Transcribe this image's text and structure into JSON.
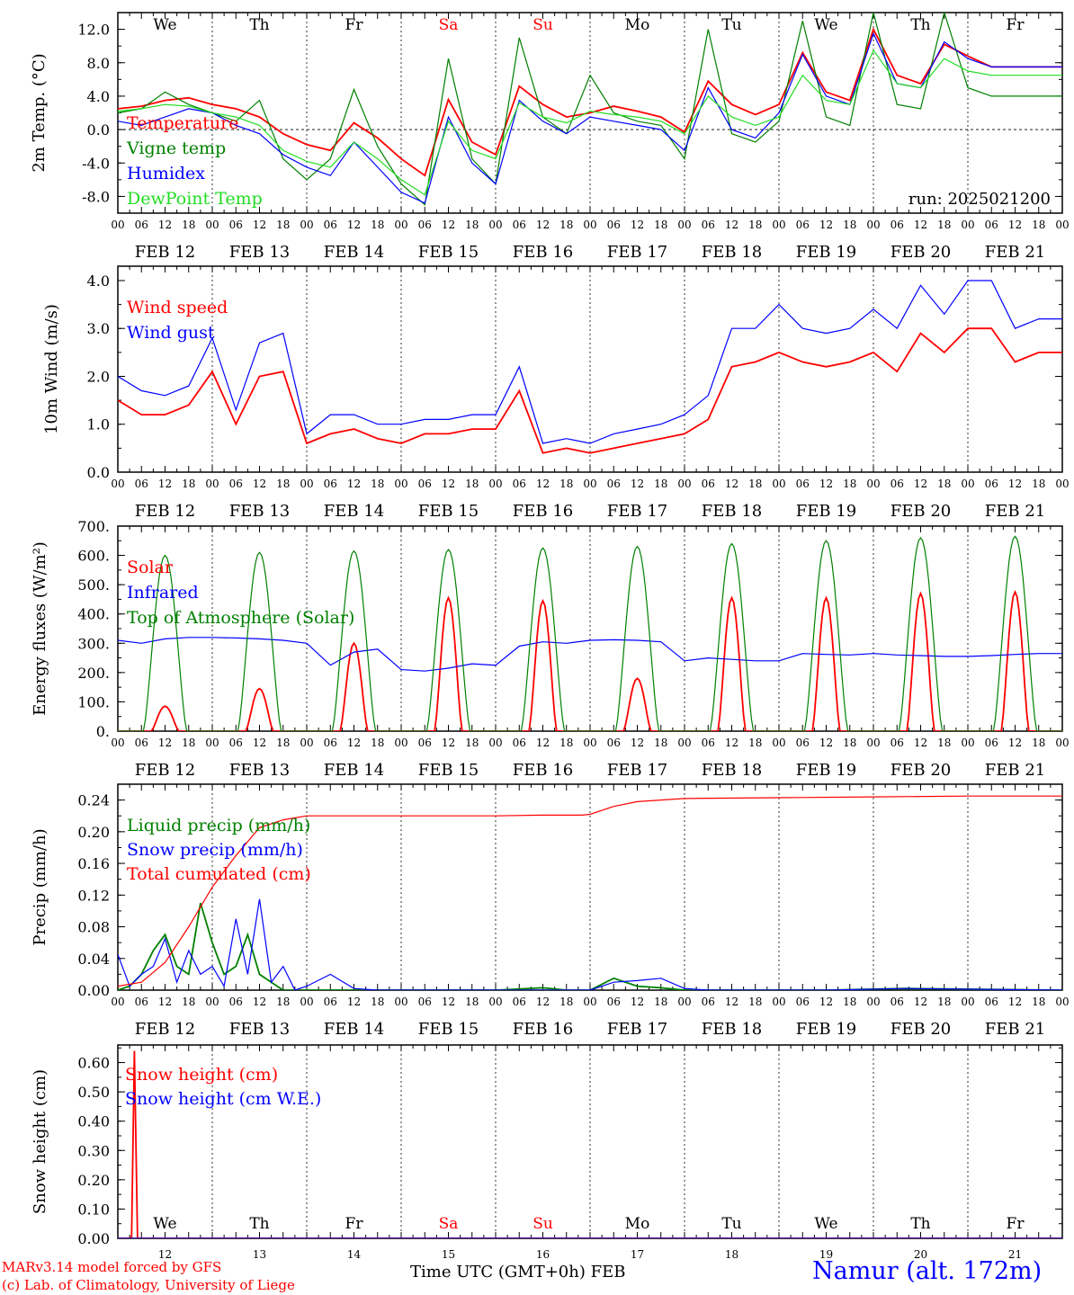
{
  "colors": {
    "red": "#ff0000",
    "green": "#008000",
    "blue": "#0000ff",
    "lightgreen": "#22dd22",
    "axis": "#000000",
    "weekend": "#ff0000",
    "credit": "#ff0000",
    "station": "#0000ff"
  },
  "days": {
    "weekday_names": [
      "We",
      "Th",
      "Fr",
      "Sa",
      "Su",
      "Mo",
      "Tu",
      "We",
      "Th",
      "Fr"
    ],
    "weekend_flags": [
      false,
      false,
      false,
      true,
      true,
      false,
      false,
      false,
      false,
      false
    ],
    "date_labels": [
      "FEB 12",
      "FEB 13",
      "FEB 14",
      "FEB 15",
      "FEB 16",
      "FEB 17",
      "FEB 18",
      "FEB 19",
      "FEB 20",
      "FEB 21"
    ],
    "day_numbers": [
      "12",
      "13",
      "14",
      "15",
      "16",
      "17",
      "18",
      "19",
      "20",
      "21"
    ],
    "hour_ticks": [
      "00",
      "06",
      "12",
      "18"
    ],
    "final_tick": "00"
  },
  "run_label": "run: 2025021200",
  "footer": {
    "credit1": "MARv3.14 model forced by GFS",
    "credit2": "(c) Lab. of Climatology, University of Liege",
    "xlabel": "Time UTC (GMT+0h) FEB",
    "station": "Namur (alt. 172m)"
  },
  "chart_data": [
    {
      "type": "line",
      "ylabel": "2m Temp. (°C)",
      "ylim": [
        -10,
        14
      ],
      "yticks": [
        "-8.0",
        "-4.0",
        "0.0",
        "4.0",
        "8.0",
        "12.0"
      ],
      "ytick_values": [
        -8,
        -4,
        0,
        4,
        8,
        12
      ],
      "zero_line": true,
      "x_unit": "hours since 2025-02-12 00 UTC",
      "xlim": [
        0,
        240
      ],
      "series": [
        {
          "name": "Temperature",
          "color": "red",
          "x": [
            0,
            6,
            12,
            18,
            24,
            30,
            36,
            42,
            48,
            54,
            60,
            66,
            72,
            78,
            84,
            90,
            96,
            102,
            108,
            114,
            120,
            126,
            132,
            138,
            144,
            150,
            156,
            162,
            168,
            174,
            180,
            186,
            192,
            198,
            204,
            210,
            216,
            222,
            228,
            234,
            240
          ],
          "y": [
            2.5,
            2.8,
            3.5,
            3.8,
            3.0,
            2.5,
            1.5,
            -0.5,
            -1.8,
            -2.5,
            0.8,
            -1.0,
            -3.5,
            -5.5,
            3.6,
            -1.5,
            -3.0,
            5.2,
            3.0,
            1.5,
            2.0,
            2.8,
            2.2,
            1.5,
            -0.3,
            5.8,
            3.0,
            1.8,
            3.0,
            9.2,
            4.5,
            3.5,
            12.0,
            6.5,
            5.5,
            10.2,
            8.8,
            7.5,
            7.5,
            7.5,
            7.5
          ]
        },
        {
          "name": "Vigne temp",
          "color": "green",
          "x": [
            0,
            6,
            12,
            18,
            24,
            30,
            36,
            42,
            48,
            54,
            60,
            66,
            72,
            78,
            84,
            90,
            96,
            102,
            108,
            114,
            120,
            126,
            132,
            138,
            144,
            150,
            156,
            162,
            168,
            174,
            180,
            186,
            192,
            198,
            204,
            210,
            216,
            222,
            228,
            234,
            240
          ],
          "y": [
            2.0,
            2.5,
            4.5,
            3.0,
            2.0,
            1.0,
            3.5,
            -3.5,
            -6.0,
            -3.5,
            4.8,
            -2.0,
            -6.5,
            -9.0,
            8.5,
            -3.5,
            -6.5,
            11.0,
            1.5,
            -0.5,
            6.5,
            2.0,
            1.0,
            0.5,
            -3.5,
            12.0,
            -0.5,
            -1.5,
            1.0,
            13.0,
            1.5,
            0.5,
            14.0,
            3.0,
            2.5,
            14.0,
            5.0,
            4.0,
            4.0,
            4.0,
            4.0
          ]
        },
        {
          "name": "Humidex",
          "color": "blue",
          "x": [
            0,
            6,
            12,
            18,
            24,
            30,
            36,
            42,
            48,
            54,
            60,
            66,
            72,
            78,
            84,
            90,
            96,
            102,
            108,
            114,
            120,
            126,
            132,
            138,
            144,
            150,
            156,
            162,
            168,
            174,
            180,
            186,
            192,
            198,
            204,
            210,
            216,
            222,
            228,
            234,
            240
          ],
          "y": [
            1.0,
            0.5,
            1.5,
            2.5,
            2.0,
            0.5,
            -0.5,
            -3.0,
            -4.5,
            -5.5,
            -1.5,
            -4.5,
            -7.5,
            -8.8,
            1.5,
            -4.0,
            -6.5,
            3.5,
            1.0,
            -0.5,
            1.5,
            1.0,
            0.5,
            0.0,
            -2.5,
            5.0,
            0.0,
            -1.0,
            2.0,
            9.0,
            4.0,
            3.0,
            11.5,
            5.5,
            5.0,
            10.5,
            8.5,
            7.5,
            7.5,
            7.5,
            7.5
          ]
        },
        {
          "name": "DewPoint Temp",
          "color": "lightgreen",
          "x": [
            0,
            6,
            12,
            18,
            24,
            30,
            36,
            42,
            48,
            54,
            60,
            66,
            72,
            78,
            84,
            90,
            96,
            102,
            108,
            114,
            120,
            126,
            132,
            138,
            144,
            150,
            156,
            162,
            168,
            174,
            180,
            186,
            192,
            198,
            204,
            210,
            216,
            222,
            228,
            234,
            240
          ],
          "y": [
            2.2,
            2.5,
            3.0,
            2.8,
            2.0,
            1.5,
            0.5,
            -2.5,
            -3.8,
            -4.5,
            -1.5,
            -3.5,
            -6.0,
            -7.8,
            1.0,
            -2.5,
            -3.5,
            3.2,
            1.5,
            0.8,
            2.2,
            1.8,
            1.5,
            1.0,
            -0.5,
            4.0,
            1.5,
            0.5,
            1.5,
            6.5,
            3.5,
            3.0,
            9.5,
            5.5,
            5.0,
            8.5,
            7.0,
            6.5,
            6.5,
            6.5,
            6.5
          ]
        }
      ]
    },
    {
      "type": "line",
      "ylabel": "10m Wind (m/s)",
      "ylim": [
        0,
        4.3
      ],
      "yticks": [
        "0.0",
        "1.0",
        "2.0",
        "3.0",
        "4.0"
      ],
      "ytick_values": [
        0,
        1,
        2,
        3,
        4
      ],
      "xlim": [
        0,
        240
      ],
      "series": [
        {
          "name": "Wind speed",
          "color": "red",
          "x": [
            0,
            6,
            12,
            18,
            24,
            30,
            36,
            42,
            48,
            54,
            60,
            66,
            72,
            78,
            84,
            90,
            96,
            102,
            108,
            114,
            120,
            126,
            132,
            138,
            144,
            150,
            156,
            162,
            168,
            174,
            180,
            186,
            192,
            198,
            204,
            210,
            216,
            222,
            228,
            234,
            240
          ],
          "y": [
            1.5,
            1.2,
            1.2,
            1.4,
            2.1,
            1.0,
            2.0,
            2.1,
            0.6,
            0.8,
            0.9,
            0.7,
            0.6,
            0.8,
            0.8,
            0.9,
            0.9,
            1.7,
            0.4,
            0.5,
            0.4,
            0.5,
            0.6,
            0.7,
            0.8,
            1.1,
            2.2,
            2.3,
            2.5,
            2.3,
            2.2,
            2.3,
            2.5,
            2.1,
            2.9,
            2.5,
            3.0,
            3.0,
            2.3,
            2.5,
            2.5
          ]
        },
        {
          "name": "Wind gust",
          "color": "blue",
          "x": [
            0,
            6,
            12,
            18,
            24,
            30,
            36,
            42,
            48,
            54,
            60,
            66,
            72,
            78,
            84,
            90,
            96,
            102,
            108,
            114,
            120,
            126,
            132,
            138,
            144,
            150,
            156,
            162,
            168,
            174,
            180,
            186,
            192,
            198,
            204,
            210,
            216,
            222,
            228,
            234,
            240
          ],
          "y": [
            2.0,
            1.7,
            1.6,
            1.8,
            2.8,
            1.3,
            2.7,
            2.9,
            0.8,
            1.2,
            1.2,
            1.0,
            1.0,
            1.1,
            1.1,
            1.2,
            1.2,
            2.2,
            0.6,
            0.7,
            0.6,
            0.8,
            0.9,
            1.0,
            1.2,
            1.6,
            3.0,
            3.0,
            3.5,
            3.0,
            2.9,
            3.0,
            3.4,
            3.0,
            3.9,
            3.3,
            4.0,
            4.0,
            3.0,
            3.2,
            3.2
          ]
        }
      ]
    },
    {
      "type": "line",
      "ylabel": "Energy fluxes (W/m²)",
      "ylim": [
        0,
        700
      ],
      "yticks": [
        "0.",
        "100.",
        "200.",
        "300.",
        "400.",
        "500.",
        "600.",
        "700."
      ],
      "ytick_values": [
        0,
        100,
        200,
        300,
        400,
        500,
        600,
        700
      ],
      "xlim": [
        0,
        240
      ],
      "series": [
        {
          "name": "Solar",
          "color": "red",
          "diurnal_peaks": [
            85,
            145,
            300,
            455,
            445,
            180,
            455,
            455,
            470,
            475
          ]
        },
        {
          "name": "Infrared",
          "color": "blue",
          "x": [
            0,
            6,
            12,
            18,
            24,
            30,
            36,
            42,
            48,
            54,
            60,
            66,
            72,
            78,
            84,
            90,
            96,
            102,
            108,
            114,
            120,
            126,
            132,
            138,
            144,
            150,
            156,
            162,
            168,
            174,
            180,
            186,
            192,
            198,
            204,
            210,
            216,
            222,
            228,
            234,
            240
          ],
          "y": [
            310,
            300,
            315,
            320,
            320,
            318,
            315,
            310,
            300,
            225,
            270,
            280,
            210,
            205,
            215,
            230,
            225,
            290,
            305,
            300,
            310,
            312,
            310,
            305,
            240,
            250,
            245,
            240,
            240,
            265,
            262,
            260,
            265,
            260,
            258,
            255,
            255,
            258,
            262,
            265,
            265
          ]
        },
        {
          "name": "Top of Atmosphere (Solar)",
          "color": "green",
          "diurnal_peaks": [
            600,
            610,
            615,
            620,
            625,
            630,
            640,
            650,
            660,
            665
          ]
        }
      ]
    },
    {
      "type": "line",
      "ylabel": "Precip (mm/h)",
      "ylim": [
        0,
        0.26
      ],
      "yticks": [
        "0.00",
        "0.04",
        "0.08",
        "0.12",
        "0.16",
        "0.20",
        "0.24"
      ],
      "ytick_values": [
        0,
        0.04,
        0.08,
        0.12,
        0.16,
        0.2,
        0.24
      ],
      "xlim": [
        0,
        240
      ],
      "series": [
        {
          "name": "Liquid precip (mm/h)",
          "color": "green",
          "x": [
            0,
            3,
            6,
            9,
            12,
            15,
            18,
            21,
            24,
            27,
            30,
            33,
            36,
            39,
            42,
            48,
            60,
            72,
            84,
            96,
            108,
            114,
            120,
            126,
            132,
            138,
            144,
            180,
            200,
            240
          ],
          "y": [
            0,
            0.005,
            0.02,
            0.05,
            0.07,
            0.03,
            0.02,
            0.11,
            0.06,
            0.02,
            0.03,
            0.07,
            0.02,
            0.01,
            0,
            0,
            0,
            0,
            0,
            0,
            0.003,
            0,
            0,
            0.015,
            0.005,
            0.003,
            0,
            0,
            0.002,
            0
          ]
        },
        {
          "name": "Snow precip (mm/h)",
          "color": "blue",
          "x": [
            0,
            3,
            6,
            9,
            12,
            15,
            18,
            21,
            24,
            27,
            30,
            33,
            36,
            39,
            42,
            45,
            48,
            54,
            60,
            66,
            72,
            84,
            96,
            108,
            114,
            120,
            126,
            132,
            138,
            144,
            150,
            180,
            200,
            240
          ],
          "y": [
            0.045,
            0.005,
            0.02,
            0.03,
            0.065,
            0.01,
            0.05,
            0.02,
            0.03,
            0.005,
            0.09,
            0.02,
            0.115,
            0.01,
            0.03,
            0.0,
            0.005,
            0.02,
            0.002,
            0,
            0,
            0,
            0,
            0,
            0,
            0,
            0.01,
            0.012,
            0.015,
            0.002,
            0,
            0,
            0.002,
            0
          ]
        },
        {
          "name": "Total cumulated (cm)",
          "color": "red",
          "x": [
            0,
            6,
            12,
            18,
            24,
            30,
            36,
            42,
            48,
            60,
            72,
            96,
            108,
            118,
            120,
            126,
            132,
            138,
            144,
            168,
            192,
            216,
            240
          ],
          "y": [
            0.005,
            0.01,
            0.035,
            0.08,
            0.13,
            0.17,
            0.205,
            0.215,
            0.22,
            0.22,
            0.22,
            0.22,
            0.221,
            0.221,
            0.222,
            0.232,
            0.238,
            0.24,
            0.242,
            0.243,
            0.244,
            0.245,
            0.245
          ]
        }
      ]
    },
    {
      "type": "line",
      "ylabel": "Snow height (cm)",
      "ylim": [
        0,
        0.66
      ],
      "yticks": [
        "0.00",
        "0.10",
        "0.20",
        "0.30",
        "0.40",
        "0.50",
        "0.60"
      ],
      "ytick_values": [
        0,
        0.1,
        0.2,
        0.3,
        0.4,
        0.5,
        0.6
      ],
      "xlim": [
        0,
        240
      ],
      "series": [
        {
          "name": "Snow height (cm)",
          "color": "red",
          "x": [
            0,
            3,
            3.5,
            4.2,
            5.0,
            240
          ],
          "y": [
            0,
            0,
            0.005,
            0.64,
            0,
            0
          ]
        },
        {
          "name": "Snow height (cm W.E.)",
          "color": "blue",
          "x": [
            0,
            240
          ],
          "y": [
            0,
            0
          ]
        }
      ]
    }
  ]
}
